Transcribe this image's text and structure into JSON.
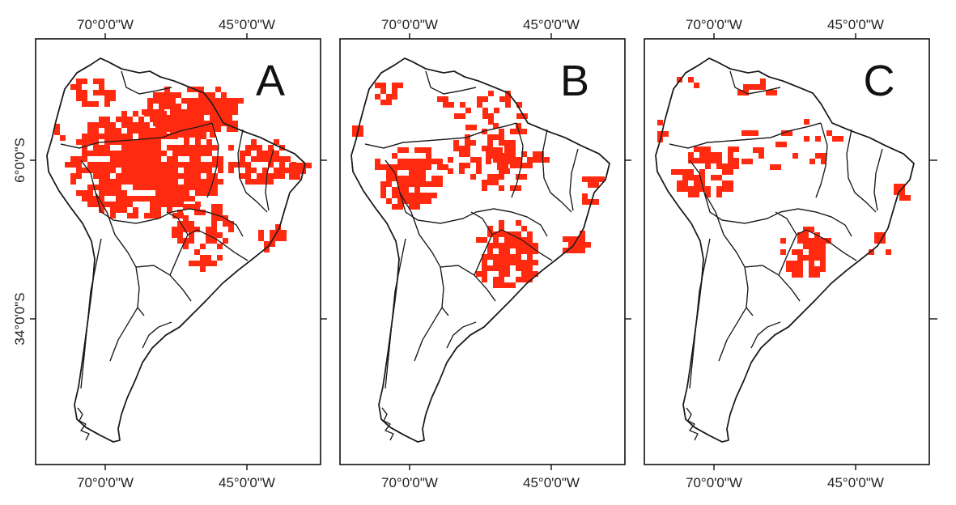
{
  "figure": {
    "colors": {
      "presence": "#ff2a10",
      "outline": "#1a1a1a",
      "background": "#ffffff"
    },
    "panels": [
      {
        "label": "A",
        "top_ticks": [
          "70°0'0\"W",
          "45°0'0\"W"
        ],
        "bottom_ticks": [
          "70°0'0\"W",
          "45°0'0\"W"
        ],
        "left_ticks": [
          "6°0'0\"S",
          "34°0'0\"S"
        ],
        "presence_level": "high"
      },
      {
        "label": "B",
        "top_ticks": [
          "70°0'0\"W",
          "45°0'0\"W"
        ],
        "bottom_ticks": [
          "70°0'0\"W",
          "45°0'0\"W"
        ],
        "presence_level": "medium"
      },
      {
        "label": "C",
        "top_ticks": [
          "70°0'0\"W",
          "45°0'0\"W"
        ],
        "bottom_ticks": [
          "70°0'0\"W",
          "45°0'0\"W"
        ],
        "presence_level": "low"
      }
    ]
  }
}
